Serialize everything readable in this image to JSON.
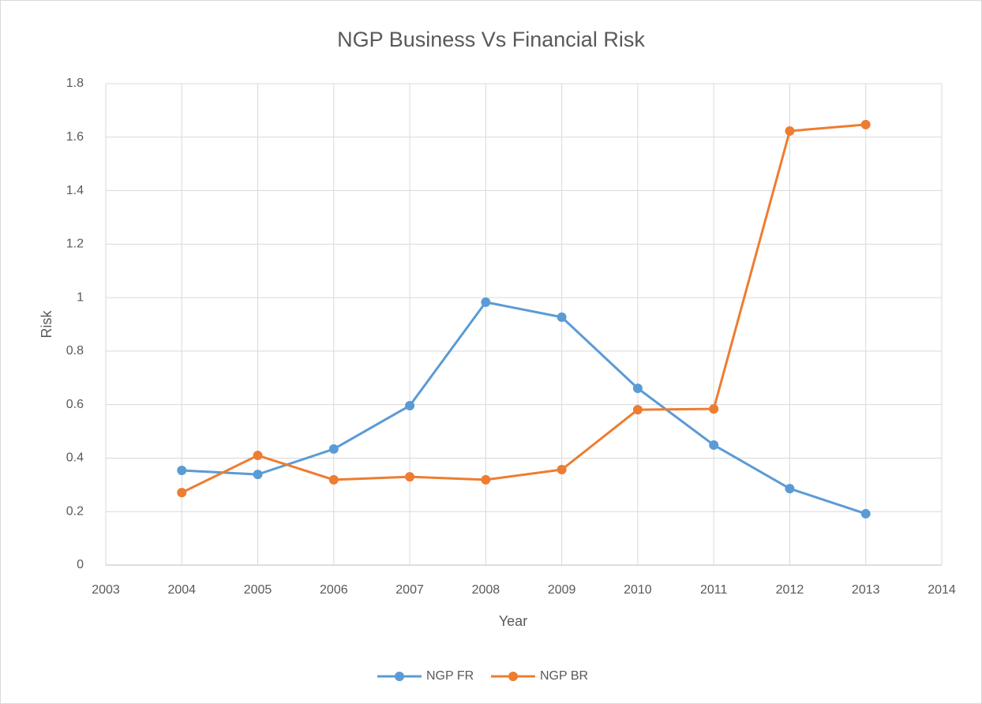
{
  "chart_data": {
    "type": "line",
    "title": "NGP Business Vs Financial Risk",
    "x_label": "Year",
    "y_label": "Risk",
    "x": [
      2004,
      2005,
      2006,
      2007,
      2008,
      2009,
      2010,
      2011,
      2012,
      2013
    ],
    "series": [
      {
        "name": "NGP FR",
        "color": "#5b9bd5",
        "values": [
          0.354,
          0.339,
          0.434,
          0.596,
          0.983,
          0.927,
          0.661,
          0.449,
          0.286,
          0.192
        ]
      },
      {
        "name": "NGP BR",
        "color": "#ed7d31",
        "values": [
          0.271,
          0.41,
          0.319,
          0.33,
          0.319,
          0.357,
          0.581,
          0.584,
          1.623,
          1.647
        ]
      }
    ],
    "xlim": [
      2003,
      2014
    ],
    "xticks": [
      2003,
      2004,
      2005,
      2006,
      2007,
      2008,
      2009,
      2010,
      2011,
      2012,
      2013,
      2014
    ],
    "ylim": [
      0,
      1.8
    ],
    "yticks": [
      0,
      0.2,
      0.4,
      0.6,
      0.8,
      1,
      1.2,
      1.4,
      1.6,
      1.8
    ],
    "grid": true,
    "legend": "bottom"
  }
}
